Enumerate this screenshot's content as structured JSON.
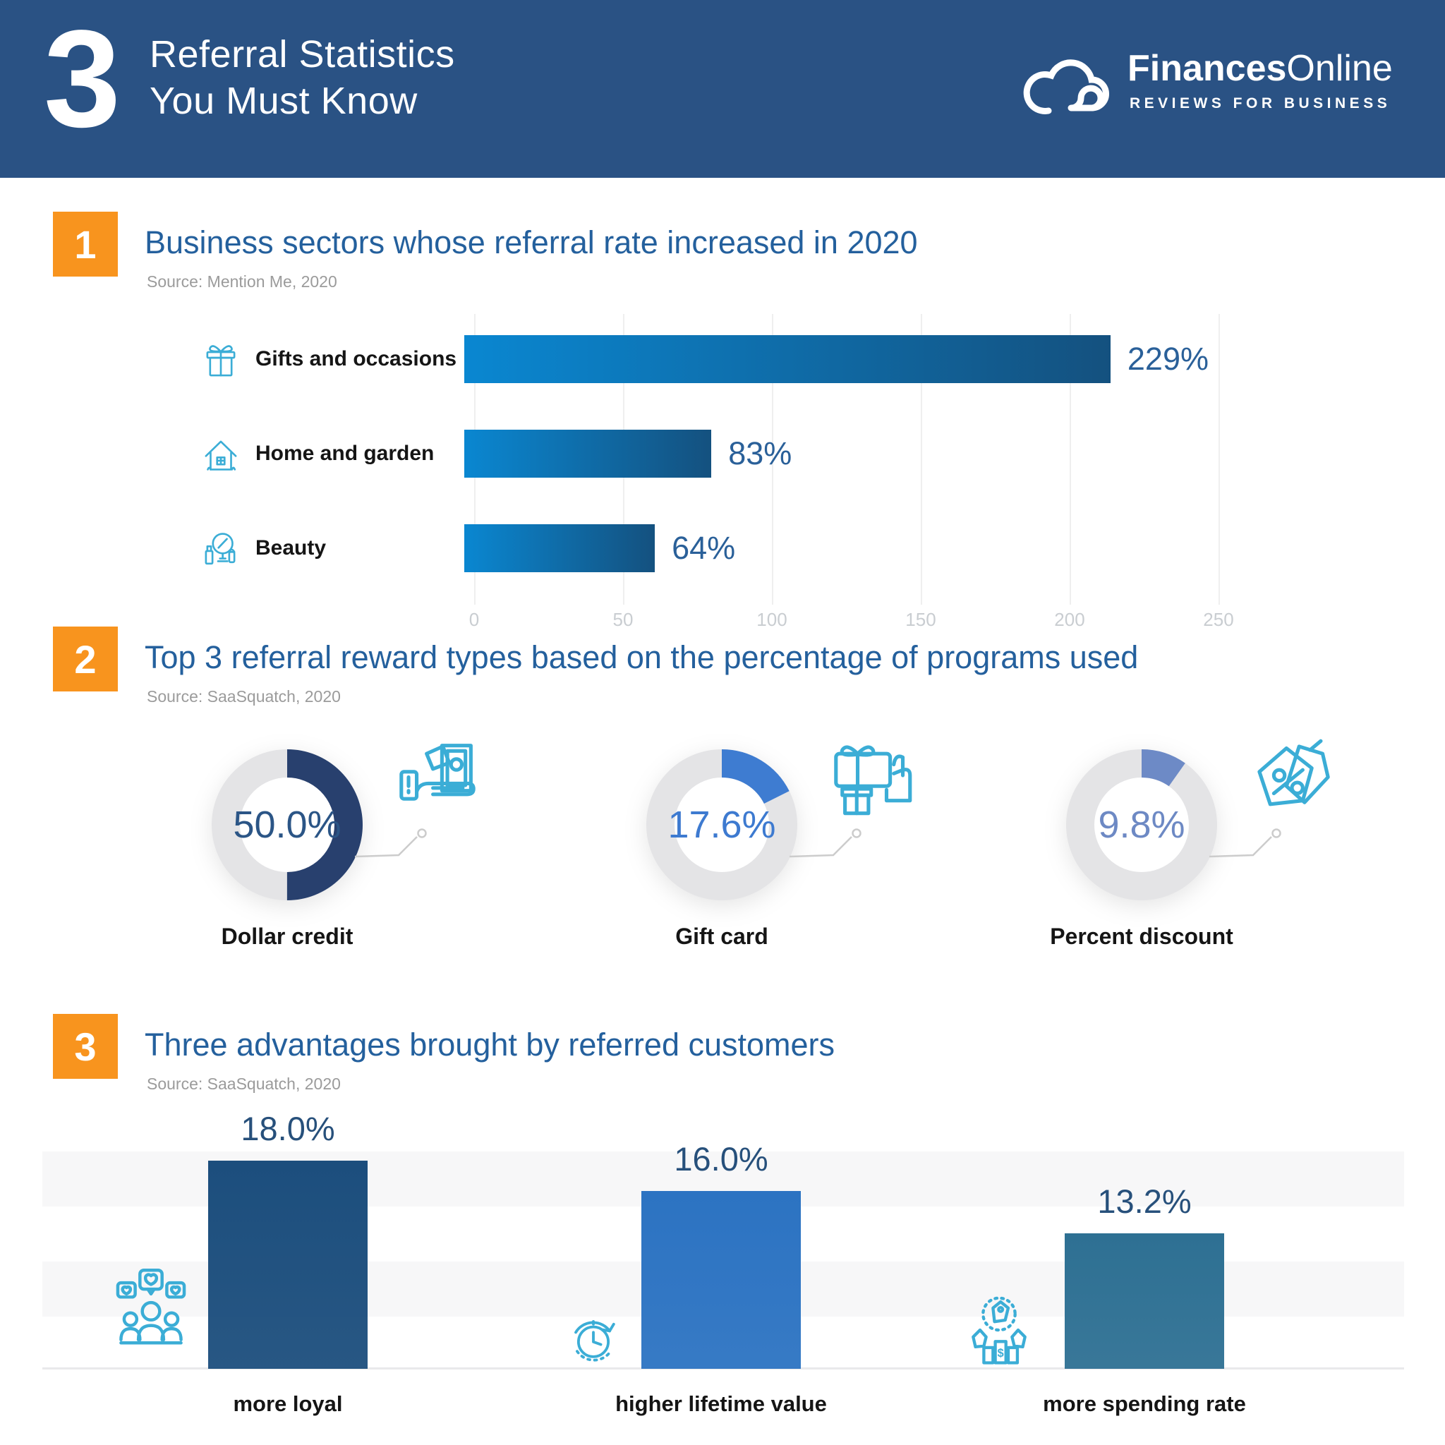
{
  "header": {
    "big_number": "3",
    "title_line1": "Referral Statistics",
    "title_line2": "You Must Know",
    "logo_brand_bold": "Finances",
    "logo_brand_light": "Online",
    "logo_tagline": "REVIEWS FOR BUSINESS"
  },
  "colors": {
    "header_bg": "#2A5284",
    "accent_orange": "#F8941E",
    "section_title_blue": "#24609D",
    "icon_stroke": "#3BADD6",
    "source_gray": "#9B9B9B"
  },
  "section1": {
    "number": "1",
    "title": "Business sectors whose referral rate increased in 2020",
    "source": "Source: Mention Me, 2020",
    "chart_data": {
      "type": "bar",
      "orientation": "horizontal",
      "categories": [
        "Gifts and occasions",
        "Home and garden",
        "Beauty"
      ],
      "values": [
        229,
        83,
        64
      ],
      "value_labels": [
        "229%",
        "83%",
        "64%"
      ],
      "icons": [
        "gift-icon",
        "home-garden-icon",
        "beauty-icon"
      ],
      "xlim": [
        0,
        250
      ],
      "x_ticks": [
        0,
        50,
        100,
        150,
        200,
        250
      ],
      "grid": true,
      "bar_gradient_start": "#0A87D1",
      "bar_gradient_end": "#14517F",
      "value_color": "#2A6099"
    }
  },
  "section2": {
    "number": "2",
    "title": "Top 3 referral reward types based on the percentage of programs used",
    "source": "Source: SaaSquatch, 2020",
    "chart_data": {
      "type": "pie",
      "style": "donut",
      "track_color": "#E4E4E6",
      "items": [
        {
          "label": "Dollar credit",
          "value": 50.0,
          "value_label": "50.0%",
          "arc_color": "#28406E",
          "text_color": "#2B5586",
          "icon": "cash-in-hand-icon"
        },
        {
          "label": "Gift card",
          "value": 17.6,
          "value_label": "17.6%",
          "arc_color": "#3E7CD1",
          "text_color": "#3D7AD0",
          "icon": "gift-card-icon"
        },
        {
          "label": "Percent discount",
          "value": 9.8,
          "value_label": "9.8%",
          "arc_color": "#6D8AC6",
          "text_color": "#6D89C4",
          "icon": "discount-tags-icon"
        }
      ]
    }
  },
  "section3": {
    "number": "3",
    "title": "Three advantages brought by referred customers",
    "source": "Source: SaaSquatch, 2020",
    "chart_data": {
      "type": "bar",
      "orientation": "vertical",
      "categories": [
        "more loyal",
        "higher lifetime value",
        "more spending rate"
      ],
      "values": [
        18.0,
        16.0,
        13.2
      ],
      "value_labels": [
        "18.0%",
        "16.0%",
        "13.2%"
      ],
      "colors": [
        "#1C4E7D",
        "#2C73C2",
        "#2E7093"
      ],
      "icons": [
        "loyal-customers-icon",
        "lifetime-value-icon",
        "spending-rate-icon"
      ],
      "ylim": [
        4.2,
        21.5
      ],
      "grid": false,
      "value_color": "#27507B"
    }
  }
}
